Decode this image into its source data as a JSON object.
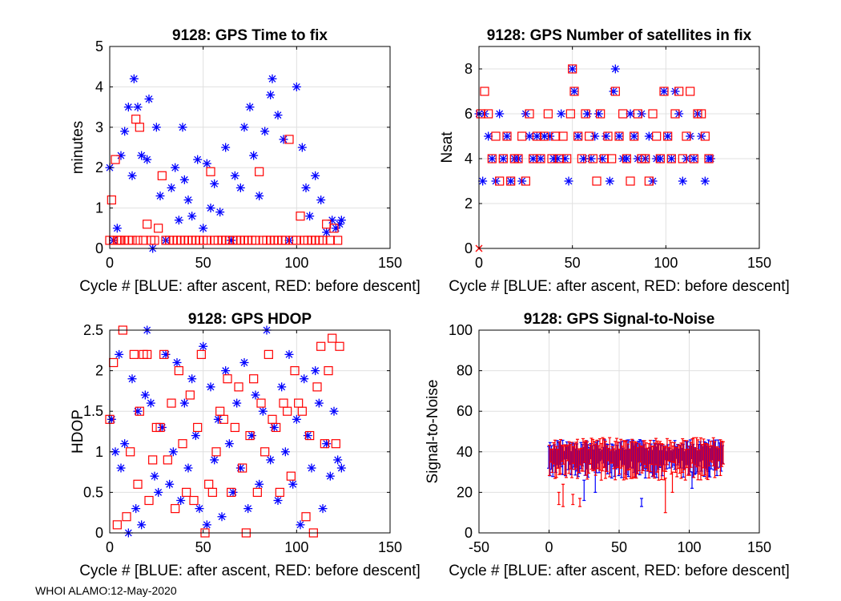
{
  "footer": "WHOI ALAMO:12-May-2020",
  "colors": {
    "after_ascent": "#0000ff",
    "before_descent": "#ff0000",
    "axis": "#000000",
    "grid": "#e0e0e0"
  },
  "chart_data": [
    {
      "id": "ttf",
      "type": "scatter",
      "title": "9128: GPS Time to fix",
      "xlabel": "Cycle #  [BLUE: after ascent, RED: before descent]",
      "ylabel": "minutes",
      "xlim": [
        0,
        150
      ],
      "ylim": [
        0,
        5
      ],
      "xticks": [
        0,
        50,
        100,
        150
      ],
      "yticks": [
        0,
        1,
        2,
        3,
        4,
        5
      ],
      "grid": true,
      "series": [
        {
          "name": "after ascent",
          "marker": "star",
          "x": [
            0,
            2,
            4,
            6,
            8,
            10,
            12,
            13,
            15,
            17,
            20,
            21,
            23,
            25,
            27,
            30,
            33,
            35,
            37,
            39,
            40,
            42,
            44,
            47,
            50,
            52,
            54,
            56,
            59,
            62,
            65,
            67,
            70,
            72,
            75,
            77,
            80,
            83,
            86,
            87,
            90,
            93,
            96,
            100,
            103,
            105,
            107,
            110,
            113,
            116,
            119,
            121,
            123,
            124
          ],
          "y": [
            2.0,
            0.2,
            0.5,
            2.3,
            2.9,
            3.5,
            1.8,
            4.2,
            3.5,
            2.3,
            2.2,
            3.7,
            0.0,
            3.0,
            1.3,
            0.2,
            1.5,
            2.0,
            0.7,
            3.0,
            1.7,
            1.2,
            0.8,
            2.2,
            0.5,
            2.1,
            1.0,
            1.6,
            0.9,
            2.5,
            0.2,
            1.8,
            1.5,
            3.0,
            3.5,
            2.3,
            1.3,
            2.9,
            3.8,
            4.2,
            3.3,
            2.7,
            0.2,
            4.0,
            2.5,
            1.5,
            0.8,
            1.8,
            1.2,
            0.4,
            0.7,
            0.5,
            0.6,
            0.7
          ]
        },
        {
          "name": "before descent",
          "marker": "square",
          "x": [
            0,
            1,
            2,
            3,
            4,
            5,
            6,
            8,
            10,
            12,
            14,
            15,
            16,
            18,
            20,
            22,
            24,
            26,
            28,
            30,
            32,
            34,
            36,
            38,
            40,
            42,
            44,
            46,
            48,
            50,
            52,
            54,
            56,
            58,
            60,
            62,
            64,
            66,
            68,
            70,
            72,
            74,
            76,
            78,
            80,
            82,
            84,
            86,
            88,
            90,
            92,
            94,
            96,
            98,
            100,
            102,
            104,
            106,
            108,
            110,
            112,
            114,
            116,
            118,
            120,
            122
          ],
          "y": [
            0.2,
            1.2,
            0.2,
            2.2,
            0.2,
            0.2,
            0.2,
            0.2,
            0.2,
            0.2,
            3.2,
            0.2,
            3.0,
            0.2,
            0.6,
            0.2,
            0.2,
            0.5,
            1.8,
            0.2,
            0.2,
            0.2,
            0.2,
            0.2,
            0.2,
            0.2,
            0.2,
            0.2,
            0.2,
            0.2,
            0.2,
            1.9,
            0.2,
            0.2,
            0.2,
            0.2,
            0.2,
            0.2,
            0.2,
            0.2,
            0.2,
            0.2,
            0.2,
            0.2,
            1.9,
            0.2,
            0.2,
            0.2,
            0.2,
            0.2,
            0.2,
            0.2,
            2.7,
            0.2,
            0.2,
            0.8,
            0.2,
            0.2,
            0.2,
            0.2,
            0.2,
            0.2,
            0.6,
            0.2,
            0.5,
            0.2
          ]
        }
      ]
    },
    {
      "id": "nsat",
      "type": "scatter",
      "title": "9128: GPS Number of satellites in fix",
      "xlabel": "Cycle #  [BLUE: after ascent, RED: before descent]",
      "ylabel": "Nsat",
      "xlim": [
        0,
        150
      ],
      "ylim": [
        0,
        9
      ],
      "xticks": [
        0,
        50,
        100,
        150
      ],
      "yticks": [
        0,
        2,
        4,
        6,
        8
      ],
      "grid": true,
      "series": [
        {
          "name": "after ascent",
          "marker": "star",
          "x": [
            0,
            2,
            3,
            5,
            7,
            9,
            11,
            13,
            15,
            17,
            19,
            21,
            23,
            25,
            27,
            29,
            31,
            33,
            35,
            38,
            40,
            42,
            44,
            46,
            48,
            50,
            51,
            53,
            56,
            58,
            60,
            62,
            64,
            66,
            68,
            70,
            72,
            73,
            75,
            77,
            79,
            81,
            83,
            85,
            87,
            89,
            91,
            93,
            95,
            97,
            99,
            101,
            103,
            105,
            107,
            109,
            111,
            113,
            115,
            117,
            119,
            121,
            123,
            124
          ],
          "x_note": "",
          "y": [
            6,
            3,
            6,
            5,
            4,
            3,
            6,
            4,
            5,
            3,
            4,
            4,
            3,
            6,
            5,
            4,
            5,
            4,
            5,
            5,
            4,
            4,
            6,
            4,
            3,
            8,
            7,
            5,
            4,
            6,
            4,
            5,
            6,
            4,
            5,
            3,
            7,
            8,
            5,
            4,
            4,
            6,
            5,
            4,
            6,
            4,
            5,
            3,
            4,
            4,
            7,
            5,
            4,
            7,
            6,
            3,
            4,
            5,
            4,
            6,
            5,
            3,
            4,
            4
          ]
        },
        {
          "name": "before descent",
          "marker": "square",
          "x": [
            0,
            1,
            3,
            5,
            7,
            9,
            11,
            13,
            15,
            17,
            19,
            21,
            23,
            25,
            27,
            29,
            31,
            33,
            35,
            37,
            39,
            41,
            43,
            45,
            47,
            49,
            50,
            51,
            53,
            55,
            57,
            59,
            61,
            63,
            65,
            67,
            69,
            71,
            73,
            75,
            77,
            79,
            81,
            83,
            85,
            87,
            89,
            91,
            93,
            95,
            97,
            99,
            101,
            103,
            105,
            107,
            109,
            111,
            113,
            115,
            117,
            119,
            121,
            123
          ],
          "y": [
            0,
            6,
            7,
            6,
            4,
            5,
            3,
            4,
            5,
            3,
            4,
            4,
            5,
            3,
            6,
            4,
            5,
            4,
            5,
            6,
            4,
            5,
            4,
            5,
            4,
            6,
            8,
            7,
            5,
            4,
            6,
            5,
            4,
            3,
            6,
            4,
            5,
            4,
            7,
            5,
            6,
            4,
            3,
            5,
            6,
            4,
            4,
            3,
            6,
            5,
            4,
            7,
            5,
            4,
            6,
            7,
            4,
            5,
            7,
            4,
            6,
            6,
            5,
            4
          ]
        }
      ]
    },
    {
      "id": "hdop",
      "type": "scatter",
      "title": "9128: GPS HDOP",
      "xlabel": "Cycle #  [BLUE: after ascent, RED: before descent]",
      "ylabel": "HDOP",
      "xlim": [
        0,
        150
      ],
      "ylim": [
        0,
        2.5
      ],
      "xticks": [
        0,
        50,
        100,
        150
      ],
      "yticks": [
        0,
        0.5,
        1,
        1.5,
        2,
        2.5
      ],
      "grid": true,
      "series": [
        {
          "name": "after ascent",
          "marker": "star",
          "x": [
            1,
            3,
            5,
            6,
            8,
            10,
            12,
            14,
            15,
            17,
            19,
            20,
            22,
            24,
            26,
            28,
            30,
            32,
            34,
            36,
            38,
            40,
            42,
            44,
            46,
            48,
            50,
            52,
            54,
            56,
            58,
            60,
            62,
            64,
            66,
            68,
            70,
            72,
            74,
            76,
            78,
            80,
            82,
            84,
            86,
            88,
            90,
            92,
            94,
            96,
            98,
            100,
            102,
            104,
            106,
            108,
            110,
            112,
            114,
            116,
            118,
            120,
            122,
            124
          ],
          "x_note": "",
          "y": [
            1.4,
            1.0,
            2.2,
            0.8,
            1.1,
            0.0,
            1.9,
            0.3,
            1.5,
            0.1,
            1.7,
            2.5,
            1.6,
            0.7,
            0.5,
            1.3,
            2.2,
            0.6,
            1.0,
            2.1,
            0.4,
            1.6,
            0.8,
            1.9,
            1.2,
            0.3,
            2.3,
            0.1,
            1.8,
            0.9,
            1.4,
            0.2,
            2.0,
            1.1,
            0.5,
            1.6,
            0.8,
            2.1,
            0.3,
            1.2,
            1.7,
            0.6,
            1.5,
            2.5,
            0.9,
            1.3,
            0.4,
            1.8,
            1.0,
            2.2,
            0.6,
            1.4,
            0.1,
            1.9,
            1.2,
            0.8,
            2.0,
            1.6,
            0.3,
            1.1,
            0.7,
            1.5,
            0.9,
            0.8
          ]
        },
        {
          "name": "before descent",
          "marker": "square",
          "x": [
            0,
            2,
            4,
            7,
            9,
            11,
            13,
            15,
            16,
            18,
            20,
            21,
            23,
            25,
            27,
            29,
            31,
            33,
            35,
            37,
            39,
            41,
            43,
            45,
            47,
            49,
            51,
            53,
            55,
            57,
            59,
            61,
            63,
            65,
            67,
            69,
            71,
            73,
            75,
            77,
            79,
            81,
            83,
            85,
            87,
            89,
            91,
            93,
            95,
            97,
            99,
            101,
            103,
            105,
            107,
            109,
            111,
            113,
            115,
            117,
            119,
            121,
            123
          ],
          "y": [
            1.4,
            2.1,
            0.1,
            2.5,
            0.2,
            1.0,
            2.2,
            0.6,
            1.5,
            2.2,
            2.2,
            0.4,
            0.9,
            1.3,
            1.3,
            2.2,
            0.9,
            1.6,
            0.3,
            2.0,
            1.1,
            0.5,
            1.7,
            0.4,
            1.3,
            2.2,
            0.0,
            0.6,
            0.5,
            1.0,
            1.5,
            1.4,
            1.9,
            0.5,
            1.3,
            1.8,
            0.8,
            0.0,
            1.2,
            1.9,
            0.5,
            1.6,
            1.0,
            2.2,
            1.4,
            1.3,
            0.5,
            1.6,
            1.5,
            0.7,
            2.0,
            1.6,
            1.5,
            0.2,
            1.2,
            0.0,
            1.8,
            2.3,
            1.1,
            2.0,
            2.4,
            1.1,
            2.3
          ]
        }
      ]
    },
    {
      "id": "snr",
      "type": "line",
      "subtype": "vertical-range-bars",
      "title": "9128: GPS Signal-to-Noise",
      "xlabel": "Cycle #  [BLUE: after ascent, RED: before descent]",
      "ylabel": "Signal-to-Noise",
      "xlim": [
        -50,
        150
      ],
      "ylim": [
        0,
        100
      ],
      "xticks": [
        -50,
        0,
        50,
        100,
        150
      ],
      "yticks": [
        0,
        20,
        40,
        60,
        80,
        100
      ],
      "grid": true,
      "x_range": [
        0,
        124
      ],
      "series": [
        {
          "name": "after ascent",
          "low": 27,
          "high": 46,
          "outliers": [
            {
              "x": 25,
              "low": 16,
              "high": 26
            },
            {
              "x": 33,
              "low": 20,
              "high": 30
            },
            {
              "x": 66,
              "low": 13,
              "high": 17
            },
            {
              "x": 102,
              "low": 22,
              "high": 30
            },
            {
              "x": 114,
              "low": 28,
              "high": 34
            }
          ]
        },
        {
          "name": "before descent",
          "low": 26,
          "high": 47,
          "outliers": [
            {
              "x": 7,
              "low": 14,
              "high": 20
            },
            {
              "x": 10,
              "low": 13,
              "high": 24
            },
            {
              "x": 17,
              "low": 14,
              "high": 19
            },
            {
              "x": 22,
              "low": 13,
              "high": 17
            },
            {
              "x": 83,
              "low": 10,
              "high": 27
            },
            {
              "x": 88,
              "low": 20,
              "high": 30
            }
          ]
        }
      ]
    }
  ]
}
